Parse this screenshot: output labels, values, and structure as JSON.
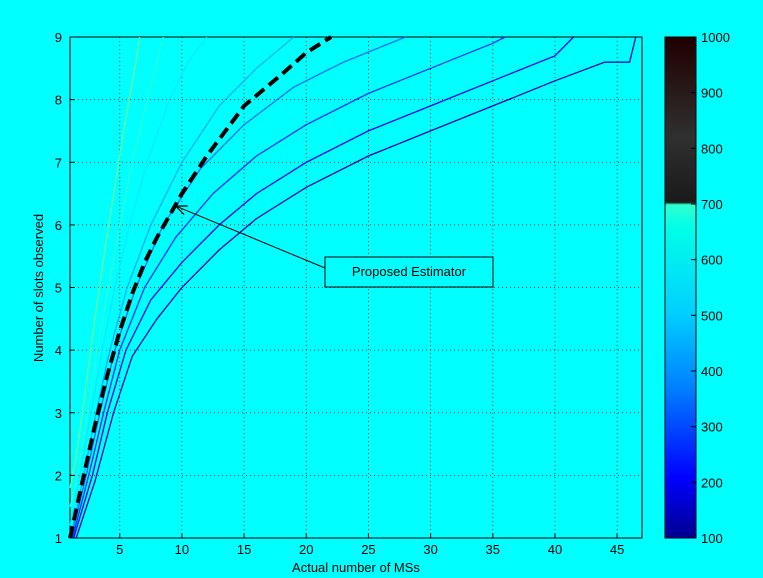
{
  "chart_data": {
    "type": "contour",
    "xlabel": "Actual number of MSs",
    "ylabel": "Number of slots observed",
    "xlim": [
      1,
      47
    ],
    "ylim": [
      1,
      9
    ],
    "xticks": [
      5,
      10,
      15,
      20,
      25,
      30,
      35,
      40,
      45
    ],
    "yticks": [
      1,
      2,
      3,
      4,
      5,
      6,
      7,
      8,
      9
    ],
    "grid": true,
    "colorbar": {
      "min": 100,
      "max": 1000,
      "ticks": [
        100,
        200,
        300,
        400,
        500,
        600,
        700,
        800,
        900,
        1000
      ],
      "colormap": "jet"
    },
    "estimator": {
      "name": "Proposed Estimator",
      "points": [
        [
          1,
          1
        ],
        [
          2,
          1.9
        ],
        [
          3,
          2.8
        ],
        [
          4,
          3.6
        ],
        [
          5,
          4.3
        ],
        [
          6,
          4.9
        ],
        [
          7,
          5.4
        ],
        [
          8,
          5.8
        ],
        [
          9,
          6.15
        ],
        [
          10,
          6.5
        ],
        [
          12,
          7.1
        ],
        [
          15,
          7.9
        ],
        [
          18,
          8.4
        ],
        [
          20,
          8.75
        ],
        [
          22,
          9
        ]
      ]
    },
    "annotation": {
      "text": "Proposed Estimator",
      "arrow_to": [
        9.5,
        6.3
      ]
    },
    "contours": [
      {
        "level": 100,
        "points": [
          [
            1.5,
            1
          ],
          [
            3,
            1.9
          ],
          [
            4.5,
            3
          ],
          [
            6,
            3.9
          ],
          [
            8,
            4.5
          ],
          [
            10,
            5
          ],
          [
            13,
            5.6
          ],
          [
            16,
            6.1
          ],
          [
            20,
            6.6
          ],
          [
            25,
            7.1
          ],
          [
            30,
            7.5
          ],
          [
            35,
            7.9
          ],
          [
            40,
            8.3
          ],
          [
            44,
            8.6
          ],
          [
            46,
            8.6
          ],
          [
            46.5,
            9
          ]
        ]
      },
      {
        "level": 200,
        "points": [
          [
            1.3,
            1
          ],
          [
            2.8,
            2
          ],
          [
            4,
            3
          ],
          [
            5.5,
            4
          ],
          [
            7.5,
            4.8
          ],
          [
            10,
            5.4
          ],
          [
            13,
            6
          ],
          [
            16,
            6.5
          ],
          [
            20,
            7
          ],
          [
            25,
            7.5
          ],
          [
            30,
            7.9
          ],
          [
            35,
            8.3
          ],
          [
            40,
            8.7
          ],
          [
            41.5,
            9
          ]
        ]
      },
      {
        "level": 300,
        "points": [
          [
            1.2,
            1
          ],
          [
            2.5,
            2
          ],
          [
            3.7,
            3
          ],
          [
            5,
            4
          ],
          [
            7,
            5
          ],
          [
            9.5,
            5.8
          ],
          [
            12.5,
            6.5
          ],
          [
            16,
            7.1
          ],
          [
            20,
            7.6
          ],
          [
            25,
            8.1
          ],
          [
            30,
            8.5
          ],
          [
            35,
            8.9
          ],
          [
            36,
            9
          ]
        ]
      },
      {
        "level": 400,
        "points": [
          [
            1.1,
            1
          ],
          [
            2.3,
            2
          ],
          [
            3.4,
            3
          ],
          [
            4.6,
            4
          ],
          [
            6.3,
            5
          ],
          [
            8.5,
            6
          ],
          [
            11.5,
            6.9
          ],
          [
            15,
            7.6
          ],
          [
            19,
            8.2
          ],
          [
            23,
            8.6
          ],
          [
            28,
            9
          ]
        ]
      },
      {
        "level": 500,
        "points": [
          [
            1.05,
            1
          ],
          [
            2.1,
            2
          ],
          [
            3.1,
            3
          ],
          [
            4.2,
            4
          ],
          [
            5.6,
            5
          ],
          [
            7.5,
            6
          ],
          [
            10,
            7
          ],
          [
            13,
            7.9
          ],
          [
            16,
            8.5
          ],
          [
            19,
            9
          ]
        ]
      },
      {
        "level": 600,
        "points": [
          [
            1,
            1.2
          ],
          [
            1.8,
            2
          ],
          [
            2.7,
            3
          ],
          [
            3.6,
            4
          ],
          [
            4.6,
            5
          ],
          [
            5.8,
            6
          ],
          [
            7.2,
            7
          ],
          [
            9,
            8
          ],
          [
            10.5,
            8.6
          ],
          [
            12,
            9
          ]
        ]
      },
      {
        "level": 700,
        "points": [
          [
            1,
            1.5
          ],
          [
            1.6,
            2
          ],
          [
            2.4,
            3
          ],
          [
            3.2,
            4
          ],
          [
            4.1,
            5
          ],
          [
            5,
            6
          ],
          [
            6,
            7
          ],
          [
            7.2,
            8
          ],
          [
            8.5,
            9
          ]
        ]
      },
      {
        "level": 800,
        "points": [
          [
            1,
            1.8
          ],
          [
            1.5,
            2.3
          ],
          [
            2.2,
            3.3
          ],
          [
            3,
            4.5
          ],
          [
            3.8,
            5.6
          ],
          [
            4.6,
            6.6
          ],
          [
            5.4,
            7.6
          ],
          [
            6.3,
            8.6
          ],
          [
            6.6,
            9
          ]
        ]
      }
    ]
  }
}
